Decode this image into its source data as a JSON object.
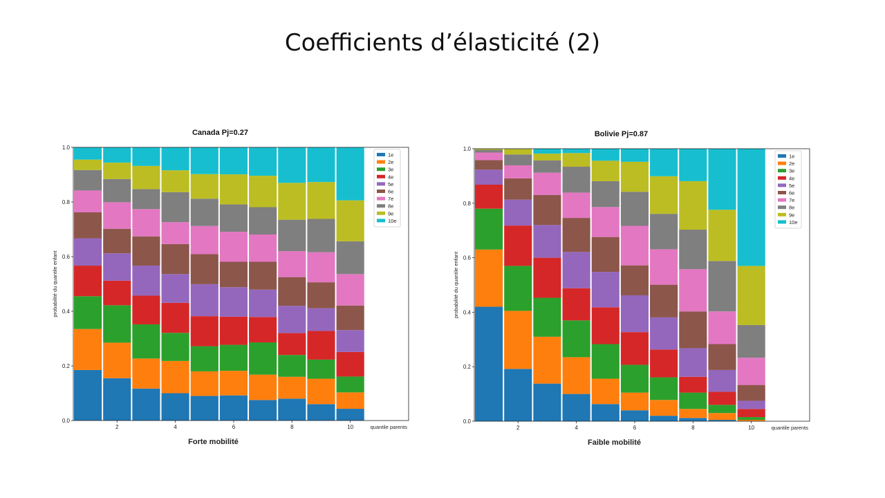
{
  "slide": {
    "title": "Coefficients d’élasticité (2)"
  },
  "chart_data": [
    {
      "type": "bar",
      "stacked": true,
      "title": "Canada  Pj=0.27",
      "caption": "Forte mobilité",
      "xlabel": "quantile parents",
      "ylabel": "probabilité du quantile enfant",
      "ylim": [
        0,
        1
      ],
      "xlim": [
        0.5,
        12
      ],
      "yticks": [
        "0.0",
        "0.2",
        "0.4",
        "0.6",
        "0.8",
        "1.0"
      ],
      "xticks": [
        "2",
        "4",
        "6",
        "8",
        "10"
      ],
      "legend_position": "top-right",
      "categories": [
        "1",
        "2",
        "3",
        "4",
        "5",
        "6",
        "7",
        "8",
        "9",
        "10"
      ],
      "series": [
        {
          "name": "1e",
          "color": "#1f77b4",
          "values": [
            0.185,
            0.155,
            0.117,
            0.1,
            0.09,
            0.092,
            0.075,
            0.08,
            0.06,
            0.043
          ]
        },
        {
          "name": "2e",
          "color": "#ff7f0e",
          "values": [
            0.15,
            0.13,
            0.11,
            0.118,
            0.09,
            0.09,
            0.093,
            0.08,
            0.093,
            0.06
          ]
        },
        {
          "name": "3e",
          "color": "#2ca02c",
          "values": [
            0.12,
            0.137,
            0.125,
            0.103,
            0.092,
            0.095,
            0.118,
            0.08,
            0.07,
            0.058
          ]
        },
        {
          "name": "4e",
          "color": "#d62728",
          "values": [
            0.112,
            0.09,
            0.105,
            0.11,
            0.11,
            0.103,
            0.093,
            0.08,
            0.105,
            0.09
          ]
        },
        {
          "name": "5e",
          "color": "#9467bd",
          "values": [
            0.1,
            0.1,
            0.11,
            0.105,
            0.117,
            0.108,
            0.1,
            0.1,
            0.083,
            0.08
          ]
        },
        {
          "name": "6e",
          "color": "#8c564b",
          "values": [
            0.095,
            0.09,
            0.107,
            0.11,
            0.11,
            0.093,
            0.102,
            0.105,
            0.095,
            0.09
          ]
        },
        {
          "name": "7e",
          "color": "#e377c2",
          "values": [
            0.08,
            0.097,
            0.1,
            0.08,
            0.103,
            0.11,
            0.1,
            0.095,
            0.11,
            0.115
          ]
        },
        {
          "name": "8e",
          "color": "#7f7f7f",
          "values": [
            0.075,
            0.085,
            0.073,
            0.11,
            0.1,
            0.1,
            0.1,
            0.115,
            0.122,
            0.12
          ]
        },
        {
          "name": "9e",
          "color": "#bcbd22",
          "values": [
            0.038,
            0.06,
            0.085,
            0.08,
            0.09,
            0.11,
            0.115,
            0.135,
            0.135,
            0.15
          ]
        },
        {
          "name": "10e",
          "color": "#17becf",
          "values": [
            0.045,
            0.056,
            0.068,
            0.084,
            0.098,
            0.099,
            0.104,
            0.13,
            0.127,
            0.194
          ]
        }
      ]
    },
    {
      "type": "bar",
      "stacked": true,
      "title": "Bolivie  Pj=0.87",
      "caption": "Faible mobilité",
      "xlabel": "quantile parents",
      "ylabel": "probabilité du quantile enfant",
      "ylim": [
        0,
        1
      ],
      "xlim": [
        0.5,
        12
      ],
      "yticks": [
        "0.0",
        "0.2",
        "0.4",
        "0.6",
        "0.8",
        "1.0"
      ],
      "xticks": [
        "2",
        "4",
        "6",
        "8",
        "10"
      ],
      "legend_position": "top-right",
      "categories": [
        "1",
        "2",
        "3",
        "4",
        "5",
        "6",
        "7",
        "8",
        "9",
        "10"
      ],
      "series": [
        {
          "name": "1e",
          "color": "#1f77b4",
          "values": [
            0.42,
            0.192,
            0.138,
            0.1,
            0.063,
            0.04,
            0.02,
            0.012,
            0.005,
            0.0
          ]
        },
        {
          "name": "2e",
          "color": "#ff7f0e",
          "values": [
            0.21,
            0.213,
            0.172,
            0.135,
            0.093,
            0.065,
            0.058,
            0.033,
            0.025,
            0.005
          ]
        },
        {
          "name": "3e",
          "color": "#2ca02c",
          "values": [
            0.15,
            0.165,
            0.143,
            0.135,
            0.127,
            0.102,
            0.083,
            0.06,
            0.03,
            0.01
          ]
        },
        {
          "name": "4e",
          "color": "#d62728",
          "values": [
            0.088,
            0.148,
            0.147,
            0.118,
            0.135,
            0.12,
            0.102,
            0.058,
            0.048,
            0.03
          ]
        },
        {
          "name": "5e",
          "color": "#9467bd",
          "values": [
            0.055,
            0.095,
            0.12,
            0.133,
            0.13,
            0.135,
            0.118,
            0.105,
            0.08,
            0.03
          ]
        },
        {
          "name": "6e",
          "color": "#8c564b",
          "values": [
            0.035,
            0.078,
            0.11,
            0.125,
            0.128,
            0.11,
            0.12,
            0.135,
            0.095,
            0.058
          ]
        },
        {
          "name": "7e",
          "color": "#e377c2",
          "values": [
            0.028,
            0.048,
            0.082,
            0.093,
            0.11,
            0.145,
            0.13,
            0.155,
            0.12,
            0.1
          ]
        },
        {
          "name": "8e",
          "color": "#7f7f7f",
          "values": [
            0.01,
            0.04,
            0.045,
            0.095,
            0.095,
            0.125,
            0.13,
            0.145,
            0.185,
            0.12
          ]
        },
        {
          "name": "9e",
          "color": "#bcbd22",
          "values": [
            0.004,
            0.02,
            0.025,
            0.05,
            0.075,
            0.11,
            0.138,
            0.178,
            0.188,
            0.217
          ]
        },
        {
          "name": "10e",
          "color": "#17becf",
          "values": [
            0.0,
            0.001,
            0.018,
            0.016,
            0.044,
            0.048,
            0.101,
            0.119,
            0.224,
            0.43
          ]
        }
      ]
    }
  ]
}
